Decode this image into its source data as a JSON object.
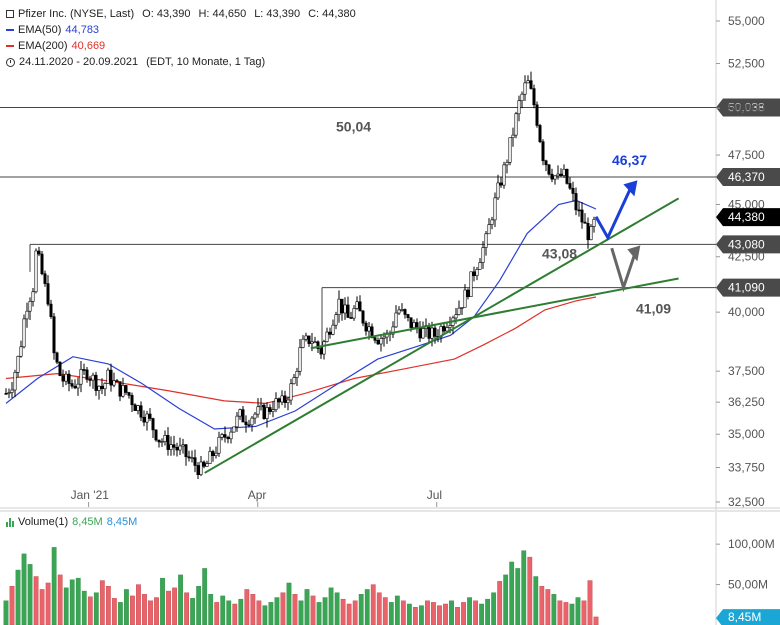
{
  "legend": {
    "title": "Pfizer Inc. (NYSE, Last)",
    "ohlc": {
      "o": "O: 43,390",
      "h": "H: 44,650",
      "l": "L: 43,390",
      "c": "C: 44,380"
    },
    "ema50": {
      "label": "EMA(50)",
      "value": "44,783",
      "color": "#2b3fd6"
    },
    "ema200": {
      "label": "EMA(200)",
      "value": "40,669",
      "color": "#e0302a"
    },
    "range": "24.11.2020 - 20.09.2021",
    "range_note": "(EDT, 10 Monate, 1 Tag)"
  },
  "volume_legend": {
    "label": "Volume(1)",
    "v1": "8,45M",
    "v2": "8,45M"
  },
  "colors": {
    "up": "#3aa655",
    "down": "#e8646a",
    "candle_up": "#ffffff",
    "candle_down": "#000000",
    "trend": "#2e7d32",
    "level": "#555555",
    "blue_arrow": "#1a3fd8",
    "grey_arrow": "#666666"
  },
  "chart_data": [
    {
      "type": "candlestick",
      "price_axis_ticks": [
        "55,000",
        "52,500",
        "50,000",
        "47,500",
        "45,000",
        "42,500",
        "40,000",
        "37,500",
        "36,250",
        "35,000",
        "33,750",
        "32,500"
      ],
      "time_axis_ticks": [
        "Jan '21",
        "Apr",
        "Jul"
      ],
      "ylim": [
        32.5,
        55
      ],
      "scale": "log",
      "grid": false,
      "current_price": "44,380",
      "levels": [
        {
          "value": 50.038,
          "axis_label": "50,038",
          "annotation": "50,04"
        },
        {
          "value": 46.37,
          "axis_label": "46,370",
          "annotation": "46,37"
        },
        {
          "value": 43.08,
          "axis_label": "43,080",
          "annotation": "43,08"
        },
        {
          "value": 41.09,
          "axis_label": "41,090",
          "annotation": "41,09"
        }
      ],
      "series": [
        {
          "name": "EMA(50)",
          "color": "#2b3fd6"
        },
        {
          "name": "EMA(200)",
          "color": "#e0302a"
        }
      ],
      "close_path": [
        [
          "2020-11-24",
          36.6
        ],
        [
          "2020-11-27",
          37.0
        ],
        [
          "2020-12-01",
          38.3
        ],
        [
          "2020-12-04",
          40.2
        ],
        [
          "2020-12-08",
          41.2
        ],
        [
          "2020-12-09",
          42.7
        ],
        [
          "2020-12-11",
          42.2
        ],
        [
          "2020-12-14",
          41.0
        ],
        [
          "2020-12-16",
          40.5
        ],
        [
          "2020-12-18",
          38.3
        ],
        [
          "2020-12-22",
          37.2
        ],
        [
          "2020-12-28",
          36.9
        ],
        [
          "2021-01-04",
          37.5
        ],
        [
          "2021-01-08",
          37.1
        ],
        [
          "2021-01-12",
          36.8
        ],
        [
          "2021-01-15",
          37.3
        ],
        [
          "2021-01-20",
          36.8
        ],
        [
          "2021-01-25",
          36.6
        ],
        [
          "2021-01-28",
          36.2
        ],
        [
          "2021-02-02",
          35.8
        ],
        [
          "2021-02-05",
          35.5
        ],
        [
          "2021-02-10",
          34.8
        ],
        [
          "2021-02-16",
          34.6
        ],
        [
          "2021-02-22",
          34.3
        ],
        [
          "2021-02-26",
          34.0
        ],
        [
          "2021-03-04",
          33.6
        ],
        [
          "2021-03-08",
          34.1
        ],
        [
          "2021-03-12",
          34.6
        ],
        [
          "2021-03-18",
          35.2
        ],
        [
          "2021-03-23",
          35.7
        ],
        [
          "2021-03-26",
          35.6
        ],
        [
          "2021-03-31",
          35.8
        ],
        [
          "2021-04-06",
          35.9
        ],
        [
          "2021-04-09",
          36.2
        ],
        [
          "2021-04-14",
          36.2
        ],
        [
          "2021-04-19",
          37.0
        ],
        [
          "2021-04-23",
          38.5
        ],
        [
          "2021-04-28",
          38.9
        ],
        [
          "2021-05-03",
          38.3
        ],
        [
          "2021-05-07",
          39.2
        ],
        [
          "2021-05-12",
          40.5
        ],
        [
          "2021-05-17",
          39.7
        ],
        [
          "2021-05-21",
          40.2
        ],
        [
          "2021-05-26",
          39.5
        ],
        [
          "2021-06-01",
          38.9
        ],
        [
          "2021-06-07",
          39.0
        ],
        [
          "2021-06-11",
          40.2
        ],
        [
          "2021-06-16",
          39.6
        ],
        [
          "2021-06-21",
          39.3
        ],
        [
          "2021-06-25",
          39.1
        ],
        [
          "2021-06-30",
          39.0
        ],
        [
          "2021-07-06",
          39.6
        ],
        [
          "2021-07-12",
          40.2
        ],
        [
          "2021-07-16",
          40.8
        ],
        [
          "2021-07-21",
          42.1
        ],
        [
          "2021-07-26",
          43.2
        ],
        [
          "2021-07-29",
          44.5
        ],
        [
          "2021-08-02",
          46.0
        ],
        [
          "2021-08-05",
          47.0
        ],
        [
          "2021-08-09",
          48.8
        ],
        [
          "2021-08-12",
          50.3
        ],
        [
          "2021-08-16",
          51.5
        ],
        [
          "2021-08-18",
          50.8
        ],
        [
          "2021-08-20",
          50.0
        ],
        [
          "2021-08-24",
          47.5
        ],
        [
          "2021-08-27",
          46.8
        ],
        [
          "2021-09-01",
          46.2
        ],
        [
          "2021-09-03",
          46.6
        ],
        [
          "2021-09-08",
          45.4
        ],
        [
          "2021-09-10",
          44.8
        ],
        [
          "2021-09-14",
          44.0
        ],
        [
          "2021-09-17",
          43.4
        ],
        [
          "2021-09-20",
          44.38
        ]
      ],
      "ema50_path": [
        [
          "2020-11-24",
          36.2
        ],
        [
          "2020-12-10",
          37.2
        ],
        [
          "2020-12-28",
          38.1
        ],
        [
          "2021-01-15",
          37.8
        ],
        [
          "2021-02-01",
          37.0
        ],
        [
          "2021-02-20",
          36.0
        ],
        [
          "2021-03-10",
          35.2
        ],
        [
          "2021-03-31",
          35.3
        ],
        [
          "2021-04-20",
          35.9
        ],
        [
          "2021-05-10",
          36.9
        ],
        [
          "2021-06-01",
          38.0
        ],
        [
          "2021-06-20",
          38.5
        ],
        [
          "2021-07-08",
          39.0
        ],
        [
          "2021-07-20",
          39.8
        ],
        [
          "2021-08-02",
          41.4
        ],
        [
          "2021-08-16",
          43.6
        ],
        [
          "2021-09-01",
          45.0
        ],
        [
          "2021-09-10",
          45.2
        ],
        [
          "2021-09-20",
          44.78
        ]
      ],
      "ema200_path": [
        [
          "2020-11-24",
          37.2
        ],
        [
          "2020-12-20",
          37.4
        ],
        [
          "2021-01-15",
          37.1
        ],
        [
          "2021-02-15",
          36.7
        ],
        [
          "2021-03-15",
          36.3
        ],
        [
          "2021-04-05",
          36.2
        ],
        [
          "2021-04-25",
          36.6
        ],
        [
          "2021-05-20",
          37.2
        ],
        [
          "2021-06-15",
          37.6
        ],
        [
          "2021-07-10",
          38.0
        ],
        [
          "2021-07-25",
          38.6
        ],
        [
          "2021-08-10",
          39.3
        ],
        [
          "2021-08-25",
          40.1
        ],
        [
          "2021-09-10",
          40.5
        ],
        [
          "2021-09-20",
          40.67
        ]
      ],
      "volume": {
        "axis_ticks": [
          "100,00M",
          "50,00M"
        ],
        "ylim": [
          0,
          120
        ],
        "current": "8,45M",
        "bars_millions": [
          30,
          48,
          68,
          88,
          75,
          60,
          44,
          52,
          96,
          62,
          46,
          56,
          58,
          42,
          35,
          40,
          55,
          48,
          33,
          28,
          44,
          36,
          50,
          38,
          30,
          34,
          58,
          42,
          46,
          62,
          40,
          33,
          48,
          70,
          38,
          28,
          36,
          30,
          26,
          32,
          44,
          38,
          30,
          24,
          28,
          34,
          40,
          52,
          38,
          30,
          44,
          36,
          28,
          34,
          46,
          40,
          32,
          26,
          30,
          38,
          44,
          50,
          40,
          34,
          28,
          36,
          30,
          26,
          22,
          24,
          30,
          28,
          24,
          26,
          30,
          22,
          28,
          34,
          30,
          26,
          32,
          40,
          54,
          62,
          78,
          70,
          92,
          84,
          60,
          48,
          44,
          38,
          30,
          28,
          26,
          34,
          30,
          55,
          10
        ]
      }
    }
  ]
}
